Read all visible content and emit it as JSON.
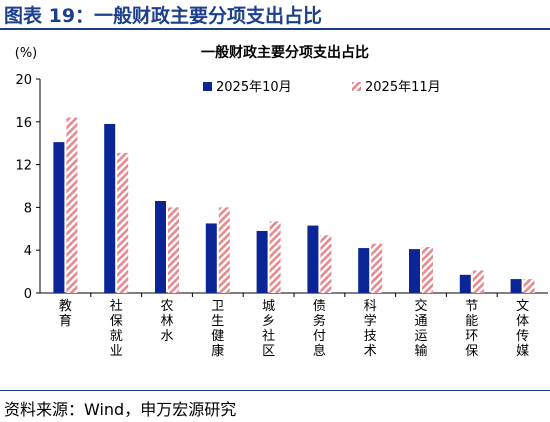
{
  "figure_title": "图表 19：一般财政主要分项支出占比",
  "source": "资料来源：Wind，申万宏源研究",
  "colors": {
    "title": "#1c3f8c",
    "series_oct": "#0b2596",
    "series_nov": "#e8888f"
  },
  "chart_data": {
    "type": "bar",
    "title": "一般财政主要分项支出占比",
    "unit_label": "(%)",
    "categories": [
      "教育",
      "社保就业",
      "农林水",
      "卫生健康",
      "城乡社区",
      "债务付息",
      "科学技术",
      "交通运输",
      "节能环保",
      "文体传媒"
    ],
    "series": [
      {
        "name": "2025年10月",
        "values": [
          14.1,
          15.8,
          8.6,
          6.5,
          5.8,
          6.3,
          4.2,
          4.1,
          1.7,
          1.3
        ]
      },
      {
        "name": "2025年11月",
        "values": [
          16.4,
          13.1,
          8.0,
          8.0,
          6.7,
          5.4,
          4.6,
          4.3,
          2.1,
          1.3
        ]
      }
    ],
    "ylim": [
      0,
      20
    ],
    "yticks": [
      0,
      4,
      8,
      12,
      16,
      20
    ],
    "legend": "top-right",
    "grid": false
  }
}
